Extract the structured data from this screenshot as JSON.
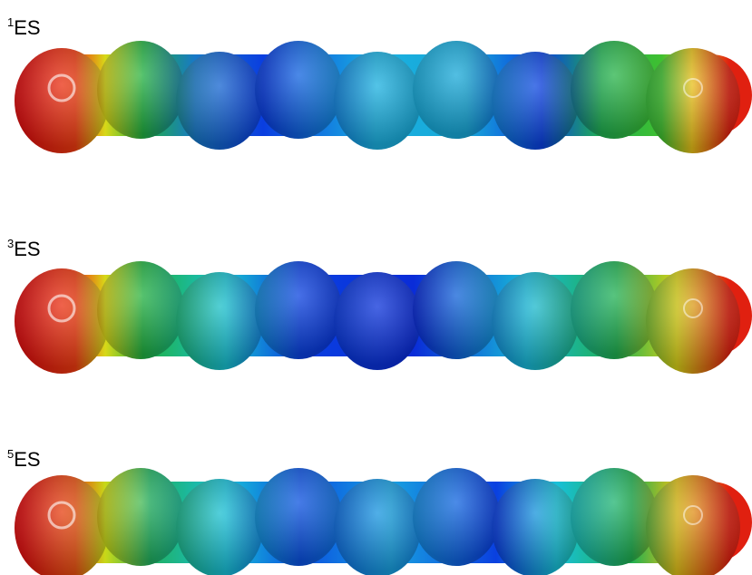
{
  "panels": [
    {
      "superscript": "1",
      "label": "ES"
    },
    {
      "superscript": "3",
      "label": "ES"
    },
    {
      "superscript": "5",
      "label": "ES"
    }
  ]
}
